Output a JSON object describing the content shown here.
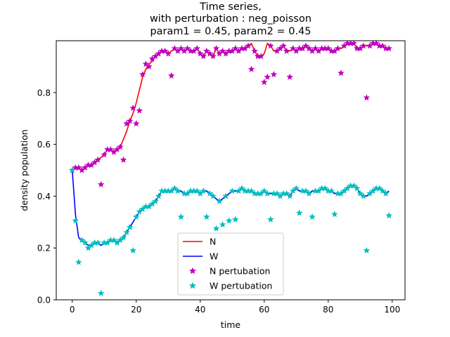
{
  "chart_data": {
    "type": "line",
    "title": [
      "Time series,",
      "with perturbation : neg_poisson",
      "param1 = 0.45, param2 = 0.45"
    ],
    "xlabel": "time",
    "ylabel": "density population",
    "xlim": [
      -5,
      104
    ],
    "ylim": [
      0,
      1
    ],
    "xticks": [
      0,
      20,
      40,
      60,
      80,
      100
    ],
    "yticks": [
      0.0,
      0.2,
      0.4,
      0.6,
      0.8
    ],
    "ytick_labels": [
      "0.0",
      "0.2",
      "0.4",
      "0.6",
      "0.8"
    ],
    "grid": false,
    "legend_placement": "lower center",
    "x": [
      0,
      1,
      2,
      3,
      4,
      5,
      6,
      7,
      8,
      9,
      10,
      11,
      12,
      13,
      14,
      15,
      16,
      17,
      18,
      19,
      20,
      21,
      22,
      23,
      24,
      25,
      26,
      27,
      28,
      29,
      30,
      31,
      32,
      33,
      34,
      35,
      36,
      37,
      38,
      39,
      40,
      41,
      42,
      43,
      44,
      45,
      46,
      47,
      48,
      49,
      50,
      51,
      52,
      53,
      54,
      55,
      56,
      57,
      58,
      59,
      60,
      61,
      62,
      63,
      64,
      65,
      66,
      67,
      68,
      69,
      70,
      71,
      72,
      73,
      74,
      75,
      76,
      77,
      78,
      79,
      80,
      81,
      82,
      83,
      84,
      85,
      86,
      87,
      88,
      89,
      90,
      91,
      92,
      93,
      94,
      95,
      96,
      97,
      98,
      99
    ],
    "series": [
      {
        "name": "N",
        "style": "line",
        "color": "#ff0000",
        "values": [
          0.5,
          0.51,
          0.51,
          0.5,
          0.51,
          0.52,
          0.52,
          0.53,
          0.54,
          0.55,
          0.56,
          0.58,
          0.58,
          0.57,
          0.58,
          0.59,
          0.62,
          0.65,
          0.69,
          0.72,
          0.76,
          0.81,
          0.86,
          0.89,
          0.91,
          0.92,
          0.94,
          0.95,
          0.96,
          0.96,
          0.95,
          0.96,
          0.97,
          0.96,
          0.97,
          0.96,
          0.97,
          0.96,
          0.96,
          0.97,
          0.95,
          0.94,
          0.96,
          0.95,
          0.94,
          0.97,
          0.95,
          0.96,
          0.95,
          0.96,
          0.96,
          0.97,
          0.96,
          0.97,
          0.97,
          0.98,
          0.99,
          0.96,
          0.94,
          0.94,
          0.95,
          0.99,
          0.98,
          0.96,
          0.96,
          0.97,
          0.98,
          0.96,
          0.96,
          0.97,
          0.96,
          0.97,
          0.97,
          0.98,
          0.97,
          0.96,
          0.97,
          0.96,
          0.97,
          0.97,
          0.97,
          0.96,
          0.96,
          0.97,
          0.97,
          0.98,
          0.99,
          0.99,
          0.99,
          0.97,
          0.97,
          0.98,
          0.98,
          0.98,
          0.99,
          0.99,
          0.98,
          0.98,
          0.97,
          0.97
        ]
      },
      {
        "name": "W",
        "style": "line",
        "color": "#0000ff",
        "values": [
          0.5,
          0.33,
          0.24,
          0.23,
          0.22,
          0.21,
          0.21,
          0.22,
          0.22,
          0.21,
          0.22,
          0.22,
          0.23,
          0.23,
          0.22,
          0.23,
          0.24,
          0.26,
          0.28,
          0.3,
          0.32,
          0.34,
          0.35,
          0.36,
          0.36,
          0.37,
          0.38,
          0.4,
          0.42,
          0.42,
          0.42,
          0.42,
          0.43,
          0.42,
          0.42,
          0.41,
          0.41,
          0.42,
          0.42,
          0.42,
          0.41,
          0.42,
          0.42,
          0.41,
          0.4,
          0.39,
          0.38,
          0.39,
          0.4,
          0.41,
          0.42,
          0.42,
          0.42,
          0.43,
          0.42,
          0.42,
          0.42,
          0.41,
          0.41,
          0.41,
          0.42,
          0.41,
          0.41,
          0.41,
          0.41,
          0.4,
          0.41,
          0.41,
          0.4,
          0.42,
          0.43,
          0.42,
          0.42,
          0.42,
          0.41,
          0.42,
          0.42,
          0.42,
          0.43,
          0.43,
          0.42,
          0.42,
          0.41,
          0.41,
          0.41,
          0.42,
          0.43,
          0.44,
          0.44,
          0.43,
          0.41,
          0.4,
          0.4,
          0.41,
          0.42,
          0.43,
          0.43,
          0.42,
          0.41,
          0.42
        ]
      },
      {
        "name": "N pertubation",
        "style": "marker",
        "color": "#bf00bf",
        "values": [
          0.5,
          0.51,
          0.51,
          0.5,
          0.51,
          0.52,
          0.52,
          0.53,
          0.54,
          0.445,
          0.56,
          0.58,
          0.58,
          0.57,
          0.58,
          0.59,
          0.54,
          0.68,
          0.69,
          0.74,
          0.68,
          0.73,
          0.87,
          0.91,
          0.9,
          0.93,
          0.94,
          0.95,
          0.96,
          0.96,
          0.95,
          0.865,
          0.97,
          0.96,
          0.97,
          0.96,
          0.97,
          0.96,
          0.96,
          0.97,
          0.95,
          0.94,
          0.96,
          0.95,
          0.94,
          0.97,
          0.95,
          0.96,
          0.95,
          0.96,
          0.96,
          0.97,
          0.96,
          0.97,
          0.97,
          0.98,
          0.89,
          0.96,
          0.94,
          0.94,
          0.84,
          0.86,
          0.98,
          0.87,
          0.96,
          0.97,
          0.98,
          0.96,
          0.86,
          0.97,
          0.96,
          0.97,
          0.97,
          0.98,
          0.97,
          0.96,
          0.97,
          0.96,
          0.97,
          0.97,
          0.97,
          0.96,
          0.96,
          0.97,
          0.875,
          0.98,
          0.99,
          0.99,
          0.99,
          0.97,
          0.97,
          0.98,
          0.78,
          0.98,
          0.99,
          0.99,
          0.98,
          0.98,
          0.97,
          0.97
        ]
      },
      {
        "name": "W pertubation",
        "style": "marker",
        "color": "#00bfbf",
        "values": [
          0.5,
          0.305,
          0.145,
          0.23,
          0.22,
          0.2,
          0.21,
          0.22,
          0.22,
          0.025,
          0.22,
          0.22,
          0.23,
          0.23,
          0.22,
          0.23,
          0.24,
          0.26,
          0.28,
          0.19,
          0.32,
          0.34,
          0.35,
          0.36,
          0.36,
          0.37,
          0.38,
          0.4,
          0.42,
          0.42,
          0.42,
          0.42,
          0.43,
          0.42,
          0.32,
          0.41,
          0.41,
          0.42,
          0.42,
          0.42,
          0.41,
          0.42,
          0.32,
          0.41,
          0.4,
          0.275,
          0.38,
          0.29,
          0.4,
          0.305,
          0.42,
          0.31,
          0.42,
          0.43,
          0.42,
          0.42,
          0.42,
          0.41,
          0.41,
          0.41,
          0.42,
          0.41,
          0.31,
          0.41,
          0.41,
          0.4,
          0.41,
          0.41,
          0.4,
          0.42,
          0.43,
          0.335,
          0.42,
          0.42,
          0.41,
          0.32,
          0.42,
          0.42,
          0.43,
          0.43,
          0.42,
          0.42,
          0.33,
          0.41,
          0.41,
          0.42,
          0.43,
          0.44,
          0.44,
          0.43,
          0.41,
          0.4,
          0.19,
          0.41,
          0.42,
          0.43,
          0.43,
          0.42,
          0.41,
          0.325
        ]
      }
    ]
  }
}
